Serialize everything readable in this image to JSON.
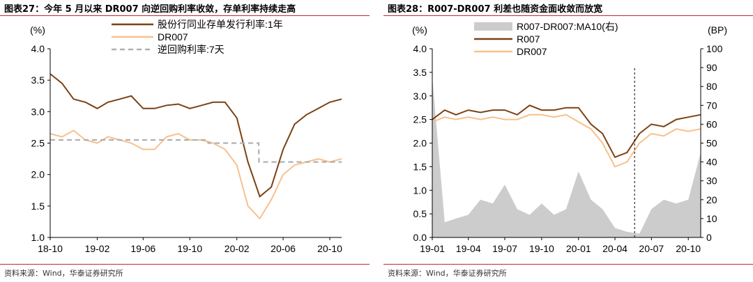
{
  "left": {
    "title": "图表27：今年 5 月以来 DR007 向逆回购利率收敛，存单利率持续走高",
    "source": "资料来源：Wind，华泰证券研究所"
  },
  "right": {
    "title": "图表28：R007-DR007 利差也随资金面收敛而放宽",
    "source": "资料来源：Wind，华泰证券研究所"
  },
  "chart_data": [
    {
      "type": "line",
      "ylabel": "(%)",
      "ylim": [
        1.0,
        4.0
      ],
      "yticks": [
        "1.0",
        "1.5",
        "2.0",
        "2.5",
        "3.0",
        "3.5",
        "4.0"
      ],
      "x_range": [
        "2018-10",
        "2020-11"
      ],
      "xticks": [
        "18-10",
        "19-02",
        "19-06",
        "19-10",
        "20-02",
        "20-06",
        "20-10"
      ],
      "legend_position": "top",
      "series": [
        {
          "name": "股份行同业存单发行利率:1年",
          "color": "#7b4112",
          "x": [
            "2018-10-01",
            "2018-11-01",
            "2018-12-01",
            "2019-01-01",
            "2019-02-01",
            "2019-03-01",
            "2019-04-01",
            "2019-05-01",
            "2019-06-01",
            "2019-07-01",
            "2019-08-01",
            "2019-09-01",
            "2019-10-01",
            "2019-11-01",
            "2019-12-01",
            "2020-01-01",
            "2020-02-01",
            "2020-03-01",
            "2020-04-01",
            "2020-05-01",
            "2020-06-01",
            "2020-07-01",
            "2020-08-01",
            "2020-09-01",
            "2020-10-01",
            "2020-11-01"
          ],
          "values": [
            3.6,
            3.45,
            3.2,
            3.15,
            3.05,
            3.15,
            3.2,
            3.25,
            3.05,
            3.05,
            3.1,
            3.12,
            3.05,
            3.1,
            3.15,
            3.15,
            2.9,
            2.2,
            1.65,
            1.8,
            2.4,
            2.8,
            2.95,
            3.05,
            3.15,
            3.2
          ]
        },
        {
          "name": "DR007",
          "color": "#f8c08c",
          "x": [
            "2018-10-01",
            "2018-11-01",
            "2018-12-01",
            "2019-01-01",
            "2019-02-01",
            "2019-03-01",
            "2019-04-01",
            "2019-05-01",
            "2019-06-01",
            "2019-07-01",
            "2019-08-01",
            "2019-09-01",
            "2019-10-01",
            "2019-11-01",
            "2019-12-01",
            "2020-01-01",
            "2020-02-01",
            "2020-03-01",
            "2020-04-01",
            "2020-05-01",
            "2020-06-01",
            "2020-07-01",
            "2020-08-01",
            "2020-09-01",
            "2020-10-01",
            "2020-11-01"
          ],
          "values": [
            2.65,
            2.6,
            2.7,
            2.55,
            2.5,
            2.6,
            2.55,
            2.5,
            2.4,
            2.4,
            2.6,
            2.65,
            2.55,
            2.55,
            2.5,
            2.4,
            2.15,
            1.5,
            1.3,
            1.6,
            2.0,
            2.15,
            2.2,
            2.25,
            2.2,
            2.25
          ]
        },
        {
          "name": "逆回购利率:7天",
          "color": "#b0b0b0",
          "style": "dashed",
          "x": [
            "2018-10-01",
            "2019-11-17",
            "2019-11-18",
            "2020-03-29",
            "2020-03-30",
            "2020-11-01"
          ],
          "values": [
            2.55,
            2.55,
            2.5,
            2.5,
            2.2,
            2.2
          ]
        }
      ]
    },
    {
      "type": "line",
      "ylabel": "(%)",
      "ylabel_right": "(BP)",
      "ylim": [
        0.0,
        4.0
      ],
      "ylim_right": [
        0,
        100
      ],
      "yticks": [
        "0.0",
        "0.5",
        "1.0",
        "1.5",
        "2.0",
        "2.5",
        "3.0",
        "3.5",
        "4.0"
      ],
      "yticks_right": [
        "0",
        "10",
        "20",
        "30",
        "40",
        "50",
        "60",
        "70",
        "80",
        "90",
        "100"
      ],
      "x_range": [
        "2019-01",
        "2020-11"
      ],
      "xticks": [
        "19-01",
        "19-04",
        "19-07",
        "19-10",
        "20-01",
        "20-04",
        "20-07",
        "20-10"
      ],
      "marker_line_date": "2020-05-20",
      "legend_position": "top",
      "series": [
        {
          "name": "R007-DR007:MA10(右)",
          "color": "#cccccc",
          "kind": "area",
          "axis": "right",
          "x": [
            "2019-01-01",
            "2019-02-01",
            "2019-03-01",
            "2019-04-01",
            "2019-05-01",
            "2019-06-01",
            "2019-07-01",
            "2019-08-01",
            "2019-09-01",
            "2019-10-01",
            "2019-11-01",
            "2019-12-01",
            "2020-01-01",
            "2020-02-01",
            "2020-03-01",
            "2020-04-01",
            "2020-05-01",
            "2020-06-01",
            "2020-07-01",
            "2020-08-01",
            "2020-09-01",
            "2020-10-01",
            "2020-11-01"
          ],
          "values": [
            85,
            8,
            10,
            12,
            20,
            18,
            28,
            15,
            12,
            18,
            12,
            15,
            35,
            20,
            15,
            5,
            3,
            2,
            15,
            20,
            18,
            20,
            45
          ]
        },
        {
          "name": "R007",
          "color": "#7b4112",
          "axis": "left",
          "x": [
            "2019-01-01",
            "2019-02-01",
            "2019-03-01",
            "2019-04-01",
            "2019-05-01",
            "2019-06-01",
            "2019-07-01",
            "2019-08-01",
            "2019-09-01",
            "2019-10-01",
            "2019-11-01",
            "2019-12-01",
            "2020-01-01",
            "2020-02-01",
            "2020-03-01",
            "2020-04-01",
            "2020-05-01",
            "2020-06-01",
            "2020-07-01",
            "2020-08-01",
            "2020-09-01",
            "2020-10-01",
            "2020-11-01"
          ],
          "values": [
            2.5,
            2.7,
            2.6,
            2.7,
            2.65,
            2.7,
            2.7,
            2.6,
            2.8,
            2.7,
            2.7,
            2.75,
            2.75,
            2.4,
            2.2,
            1.7,
            1.8,
            2.2,
            2.4,
            2.35,
            2.5,
            2.55,
            2.6
          ]
        },
        {
          "name": "DR007",
          "color": "#f8c08c",
          "axis": "left",
          "x": [
            "2019-01-01",
            "2019-02-01",
            "2019-03-01",
            "2019-04-01",
            "2019-05-01",
            "2019-06-01",
            "2019-07-01",
            "2019-08-01",
            "2019-09-01",
            "2019-10-01",
            "2019-11-01",
            "2019-12-01",
            "2020-01-01",
            "2020-02-01",
            "2020-03-01",
            "2020-04-01",
            "2020-05-01",
            "2020-06-01",
            "2020-07-01",
            "2020-08-01",
            "2020-09-01",
            "2020-10-01",
            "2020-11-01"
          ],
          "values": [
            2.45,
            2.55,
            2.5,
            2.55,
            2.5,
            2.55,
            2.5,
            2.5,
            2.6,
            2.6,
            2.55,
            2.6,
            2.45,
            2.3,
            2.0,
            1.5,
            1.6,
            2.0,
            2.2,
            2.15,
            2.3,
            2.25,
            2.3
          ]
        }
      ]
    }
  ]
}
